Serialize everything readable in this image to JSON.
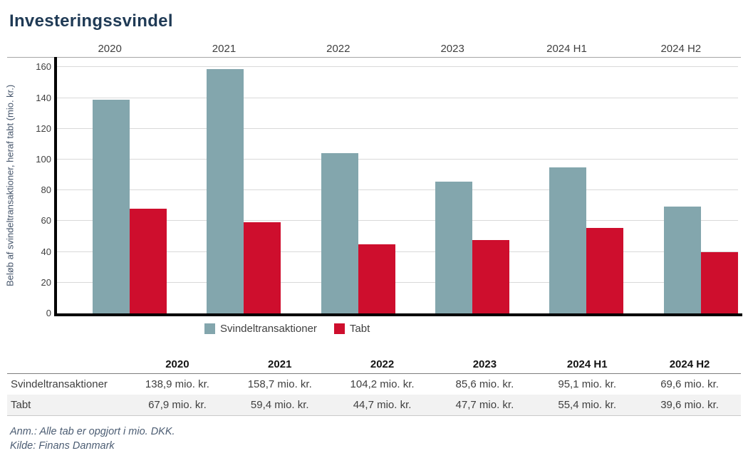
{
  "title": "Investeringssvindel",
  "chart_data": {
    "type": "bar",
    "title": "Investeringssvindel",
    "categories": [
      "2020",
      "2021",
      "2022",
      "2023",
      "2024 H1",
      "2024 H2"
    ],
    "series": [
      {
        "name": "Svindeltransaktioner",
        "color": "#83A6AD",
        "values": [
          138.9,
          158.7,
          104.2,
          85.6,
          95.1,
          69.6
        ]
      },
      {
        "name": "Tabt",
        "color": "#CE0E2D",
        "values": [
          67.9,
          59.4,
          44.7,
          47.7,
          55.4,
          39.6
        ]
      }
    ],
    "xlabel": "",
    "ylabel": "Beløb af svindeltransaktioner, heraf tabt (mio. kr.)",
    "ylim": [
      0,
      160
    ],
    "yticks": [
      0,
      20,
      40,
      60,
      80,
      100,
      120,
      140,
      160
    ],
    "grid": true,
    "legend_position": "bottom",
    "category_label_position": "top",
    "unit": "mio. kr."
  },
  "table": {
    "columns": [
      "",
      "2020",
      "2021",
      "2022",
      "2023",
      "2024 H1",
      "2024 H2"
    ],
    "rows": [
      {
        "label": "Svindeltransaktioner",
        "values": [
          "138,9 mio. kr.",
          "158,7 mio. kr.",
          "104,2 mio. kr.",
          "85,6 mio. kr.",
          "95,1 mio. kr.",
          "69,6 mio. kr."
        ]
      },
      {
        "label": "Tabt",
        "values": [
          "67,9 mio. kr.",
          "59,4 mio. kr.",
          "44,7 mio. kr.",
          "47,7 mio. kr.",
          "55,4 mio. kr.",
          "39,6 mio. kr."
        ]
      }
    ]
  },
  "notes": {
    "remark": "Anm.: Alle tab er opgjort i mio. DKK.",
    "source": "Kilde: Finans Danmark"
  },
  "colors": {
    "accent_teal": "#83A6AD",
    "accent_red": "#CE0E2D",
    "title_navy": "#1F3A55",
    "footnote_slate": "#4C5D73",
    "gridline": "#D9D9D9"
  }
}
